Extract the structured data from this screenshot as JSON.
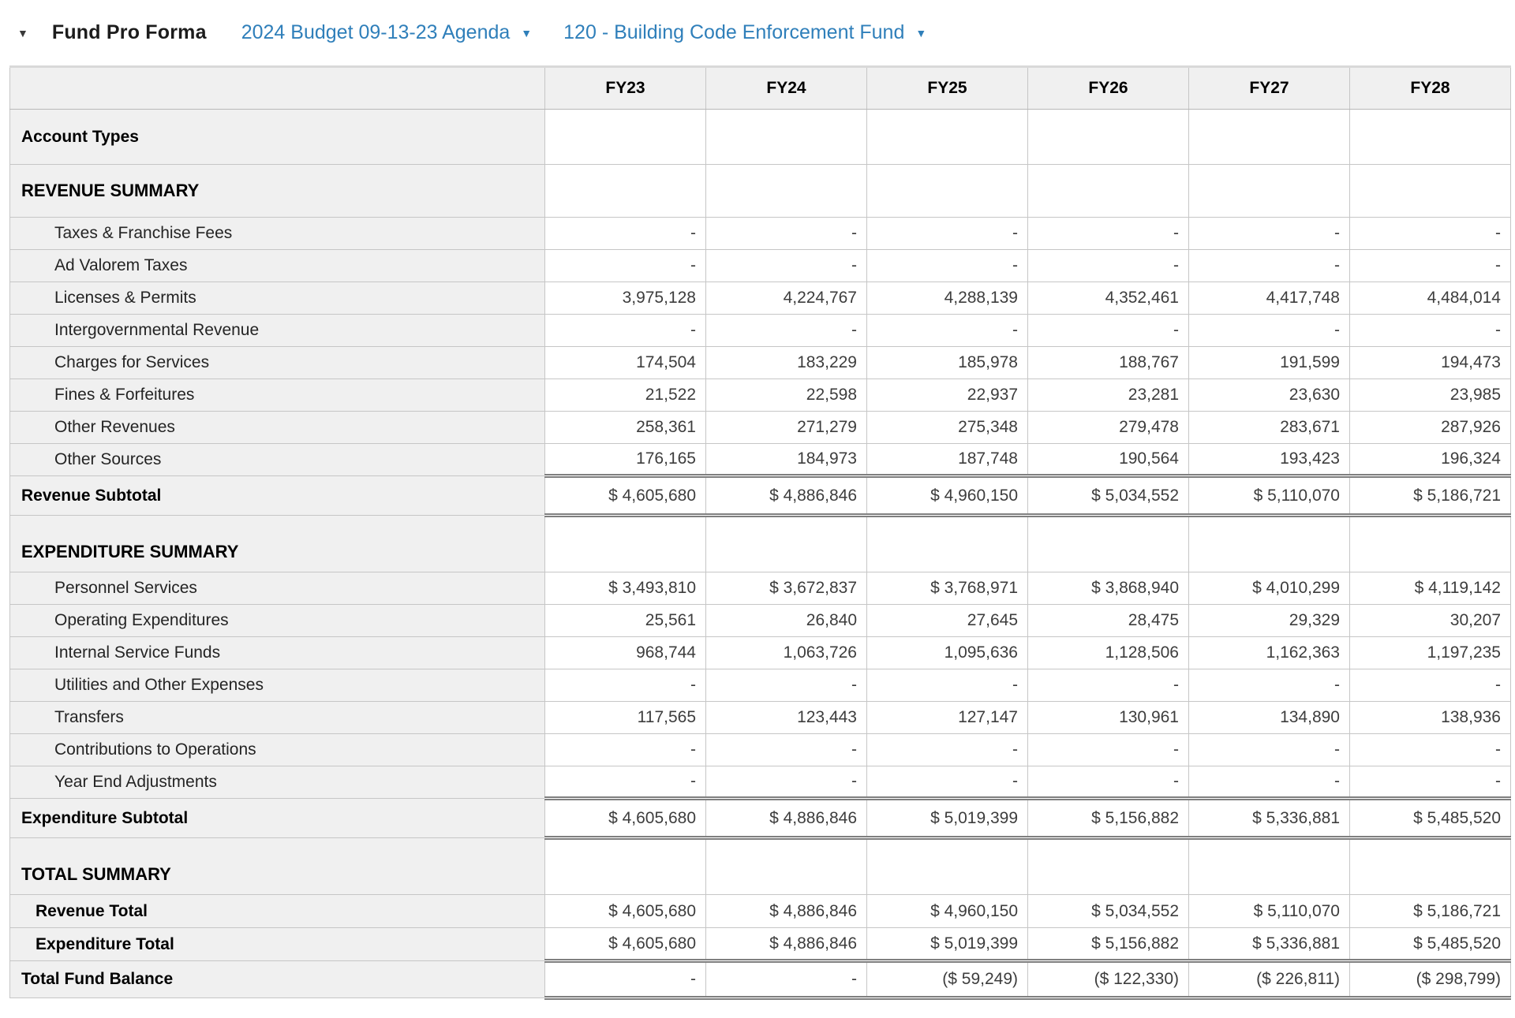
{
  "title_bar": {
    "collapse_icon": "▼",
    "title": "Fund Pro Forma",
    "budget_dropdown": {
      "label": "2024 Budget 09-13-23 Agenda",
      "caret": "▼"
    },
    "fund_dropdown": {
      "label": "120 - Building Code Enforcement Fund",
      "caret": "▼"
    }
  },
  "colors": {
    "link_blue": "#2f7fba",
    "label_column_bg": "#f0f0f0",
    "grid_line": "#c6c6c6",
    "double_line": "#7f7f7f",
    "number_text": "#3d3d3d"
  },
  "table": {
    "columns": [
      "FY23",
      "FY24",
      "FY25",
      "FY26",
      "FY27",
      "FY28"
    ],
    "rows": [
      {
        "type": "tall",
        "label": "Account Types",
        "values": [
          "",
          "",
          "",
          "",
          "",
          ""
        ]
      },
      {
        "type": "section",
        "label": "REVENUE SUMMARY",
        "values": [
          "",
          "",
          "",
          "",
          "",
          ""
        ]
      },
      {
        "type": "item",
        "label": "Taxes & Franchise Fees",
        "values": [
          "-",
          "-",
          "-",
          "-",
          "-",
          "-"
        ]
      },
      {
        "type": "item",
        "label": "Ad Valorem Taxes",
        "values": [
          "-",
          "-",
          "-",
          "-",
          "-",
          "-"
        ]
      },
      {
        "type": "item",
        "label": "Licenses & Permits",
        "values": [
          "3,975,128",
          "4,224,767",
          "4,288,139",
          "4,352,461",
          "4,417,748",
          "4,484,014"
        ]
      },
      {
        "type": "item",
        "label": "Intergovernmental Revenue",
        "values": [
          "-",
          "-",
          "-",
          "-",
          "-",
          "-"
        ]
      },
      {
        "type": "item",
        "label": "Charges for Services",
        "values": [
          "174,504",
          "183,229",
          "185,978",
          "188,767",
          "191,599",
          "194,473"
        ]
      },
      {
        "type": "item",
        "label": "Fines & Forfeitures",
        "values": [
          "21,522",
          "22,598",
          "22,937",
          "23,281",
          "23,630",
          "23,985"
        ]
      },
      {
        "type": "item",
        "label": "Other Revenues",
        "values": [
          "258,361",
          "271,279",
          "275,348",
          "279,478",
          "283,671",
          "287,926"
        ]
      },
      {
        "type": "item",
        "label": "Other Sources",
        "values": [
          "176,165",
          "184,973",
          "187,748",
          "190,564",
          "193,423",
          "196,324"
        ]
      },
      {
        "type": "subtotal",
        "label": "Revenue Subtotal",
        "values": [
          "$ 4,605,680",
          "$ 4,886,846",
          "$ 4,960,150",
          "$ 5,034,552",
          "$ 5,110,070",
          "$ 5,186,721"
        ]
      },
      {
        "type": "gap",
        "label": "EXPENDITURE SUMMARY",
        "values": [
          "",
          "",
          "",
          "",
          "",
          ""
        ]
      },
      {
        "type": "item",
        "label": "Personnel Services",
        "values": [
          "$ 3,493,810",
          "$ 3,672,837",
          "$ 3,768,971",
          "$ 3,868,940",
          "$ 4,010,299",
          "$ 4,119,142"
        ]
      },
      {
        "type": "item",
        "label": "Operating Expenditures",
        "values": [
          "25,561",
          "26,840",
          "27,645",
          "28,475",
          "29,329",
          "30,207"
        ]
      },
      {
        "type": "item",
        "label": "Internal Service Funds",
        "values": [
          "968,744",
          "1,063,726",
          "1,095,636",
          "1,128,506",
          "1,162,363",
          "1,197,235"
        ]
      },
      {
        "type": "item",
        "label": "Utilities and Other Expenses",
        "values": [
          "-",
          "-",
          "-",
          "-",
          "-",
          "-"
        ]
      },
      {
        "type": "item",
        "label": "Transfers",
        "values": [
          "117,565",
          "123,443",
          "127,147",
          "130,961",
          "134,890",
          "138,936"
        ]
      },
      {
        "type": "item",
        "label": "Contributions to Operations",
        "values": [
          "-",
          "-",
          "-",
          "-",
          "-",
          "-"
        ]
      },
      {
        "type": "item",
        "label": "Year End Adjustments",
        "values": [
          "-",
          "-",
          "-",
          "-",
          "-",
          "-"
        ]
      },
      {
        "type": "subtotal",
        "label": "Expenditure Subtotal",
        "values": [
          "$ 4,605,680",
          "$ 4,886,846",
          "$ 5,019,399",
          "$ 5,156,882",
          "$ 5,336,881",
          "$ 5,485,520"
        ]
      },
      {
        "type": "gap",
        "label": "TOTAL SUMMARY",
        "values": [
          "",
          "",
          "",
          "",
          "",
          ""
        ]
      },
      {
        "type": "total-item",
        "label": "Revenue Total",
        "values": [
          "$ 4,605,680",
          "$ 4,886,846",
          "$ 4,960,150",
          "$ 5,034,552",
          "$ 5,110,070",
          "$ 5,186,721"
        ]
      },
      {
        "type": "total-item",
        "label": "Expenditure Total",
        "values": [
          "$ 4,605,680",
          "$ 4,886,846",
          "$ 5,019,399",
          "$ 5,156,882",
          "$ 5,336,881",
          "$ 5,485,520"
        ]
      },
      {
        "type": "grand",
        "label": "Total Fund Balance",
        "values": [
          "-",
          "-",
          "($ 59,249)",
          "($ 122,330)",
          "($ 226,811)",
          "($ 298,799)"
        ]
      }
    ]
  }
}
